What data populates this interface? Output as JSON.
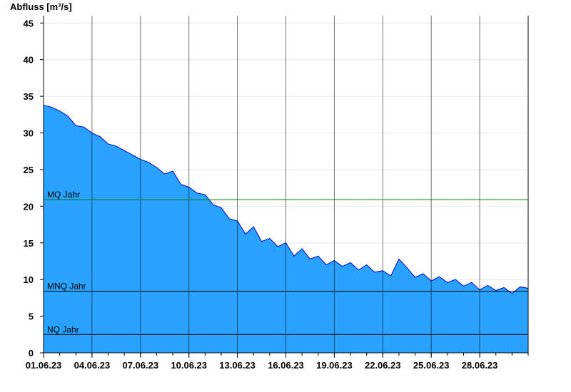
{
  "chart_data": {
    "type": "area",
    "title": "",
    "ylabel": "Abfluss [m³/s]",
    "xlabel": "",
    "ylim": [
      0,
      46
    ],
    "yticks": [
      0,
      5,
      10,
      15,
      20,
      25,
      30,
      35,
      40,
      45
    ],
    "xlim": [
      "2023-06-01",
      "2023-07-01"
    ],
    "xticks": [
      "01.06.23",
      "04.06.23",
      "07.06.23",
      "10.06.23",
      "13.06.23",
      "16.06.23",
      "19.06.23",
      "22.06.23",
      "25.06.23",
      "28.06.23"
    ],
    "grid": {
      "horizontal": true,
      "vertical": "at x ticks"
    },
    "colors": {
      "area_fill": "#29a3ff",
      "area_line": "#0000cc",
      "mq_line": "#008000",
      "mnq_line": "#000000",
      "nq_line": "#000000",
      "grid": "#e6e6e6"
    },
    "reference_lines": [
      {
        "name": "MQ Jahr",
        "value": 20.9,
        "color": "#008000"
      },
      {
        "name": "MNQ Jahr",
        "value": 8.4,
        "color": "#000000"
      },
      {
        "name": "NQ Jahr",
        "value": 2.5,
        "color": "#000000"
      }
    ],
    "series": [
      {
        "x": [
          "2023-06-01 00:00",
          "2023-06-01 12:00",
          "2023-06-02 00:00",
          "2023-06-02 12:00",
          "2023-06-03 00:00",
          "2023-06-03 12:00",
          "2023-06-04 00:00",
          "2023-06-04 12:00",
          "2023-06-05 00:00",
          "2023-06-05 12:00",
          "2023-06-06 00:00",
          "2023-06-06 12:00",
          "2023-06-07 00:00",
          "2023-06-07 12:00",
          "2023-06-08 00:00",
          "2023-06-08 12:00",
          "2023-06-09 00:00",
          "2023-06-09 12:00",
          "2023-06-10 00:00",
          "2023-06-10 12:00",
          "2023-06-11 00:00",
          "2023-06-11 12:00",
          "2023-06-12 00:00",
          "2023-06-12 12:00",
          "2023-06-13 00:00",
          "2023-06-13 12:00",
          "2023-06-14 00:00",
          "2023-06-14 12:00",
          "2023-06-15 00:00",
          "2023-06-15 12:00",
          "2023-06-16 00:00",
          "2023-06-16 12:00",
          "2023-06-17 00:00",
          "2023-06-17 12:00",
          "2023-06-18 00:00",
          "2023-06-18 12:00",
          "2023-06-19 00:00",
          "2023-06-19 12:00",
          "2023-06-20 00:00",
          "2023-06-20 12:00",
          "2023-06-21 00:00",
          "2023-06-21 12:00",
          "2023-06-22 00:00",
          "2023-06-22 12:00",
          "2023-06-23 00:00",
          "2023-06-23 12:00",
          "2023-06-24 00:00",
          "2023-06-24 12:00",
          "2023-06-25 00:00",
          "2023-06-25 12:00",
          "2023-06-26 00:00",
          "2023-06-26 12:00",
          "2023-06-27 00:00",
          "2023-06-27 12:00",
          "2023-06-28 00:00",
          "2023-06-28 12:00",
          "2023-06-29 00:00",
          "2023-06-29 12:00",
          "2023-06-30 00:00",
          "2023-06-30 12:00",
          "2023-07-01 00:00"
        ],
        "values": [
          33.8,
          33.5,
          33.0,
          32.3,
          31.0,
          30.8,
          30.0,
          29.5,
          28.5,
          28.2,
          27.6,
          27.0,
          26.4,
          26.0,
          25.3,
          24.4,
          24.8,
          23.0,
          22.6,
          21.8,
          21.6,
          20.2,
          19.8,
          18.3,
          18.0,
          16.2,
          17.2,
          15.2,
          15.6,
          14.5,
          15.0,
          13.2,
          14.2,
          12.8,
          13.2,
          12.0,
          12.6,
          11.8,
          12.3,
          11.3,
          12.0,
          11.0,
          11.2,
          10.5,
          12.8,
          11.6,
          10.3,
          10.8,
          9.8,
          10.4,
          9.6,
          10.0,
          9.1,
          9.6,
          8.6,
          9.2,
          8.5,
          8.9,
          8.1,
          9.0,
          8.8
        ]
      }
    ]
  }
}
